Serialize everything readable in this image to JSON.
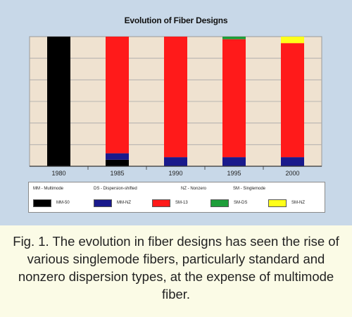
{
  "colors": {
    "background": "#c8d8e8",
    "plot_background": "#efe2d0",
    "caption_background": "#fbfbe6",
    "MM-50": "#000000",
    "MM-NZ": "#1a1a8c",
    "SM-13": "#ff1a1a",
    "SM-DS": "#1e9e3a",
    "SM-NZ": "#ffff1a"
  },
  "legend": {
    "keys": [
      "MM - Multimode",
      "DS - Dispersion-shifted",
      "NZ - Nonzero",
      "SM - Singlemode"
    ],
    "items": [
      "MM-50",
      "MM-NZ",
      "SM-13",
      "SM-DS",
      "SM-NZ"
    ]
  },
  "caption": "Fig. 1. The evolution in fiber designs has seen the rise of various singlemode fibers, particularly standard and nonzero dispersion types, at the expense of multimode fiber.",
  "chart_data": {
    "type": "bar",
    "stacked": true,
    "title": "Evolution of Fiber Designs",
    "xlabel": "",
    "ylabel": "",
    "categories": [
      "1980",
      "1985",
      "1990",
      "1995",
      "2000"
    ],
    "ylim": [
      0,
      100
    ],
    "grid": true,
    "legend_position": "bottom",
    "series": [
      {
        "name": "MM-50",
        "values": [
          100,
          5,
          0,
          0,
          0
        ]
      },
      {
        "name": "MM-NZ",
        "values": [
          0,
          5,
          7,
          7,
          7
        ]
      },
      {
        "name": "SM-13",
        "values": [
          0,
          90,
          93,
          91,
          88
        ]
      },
      {
        "name": "SM-DS",
        "values": [
          0,
          0,
          0,
          2,
          0
        ]
      },
      {
        "name": "SM-NZ",
        "values": [
          0,
          0,
          0,
          0,
          5
        ]
      }
    ]
  }
}
